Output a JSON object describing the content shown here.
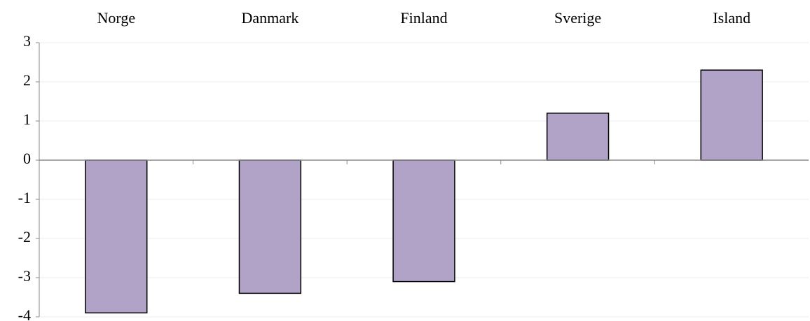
{
  "chart_data": {
    "type": "bar",
    "categories": [
      "Norge",
      "Danmark",
      "Finland",
      "Sverige",
      "Island"
    ],
    "values": [
      -3.9,
      -3.4,
      -3.1,
      1.2,
      2.3
    ],
    "color": "#b1a3c8",
    "ylim": [
      -4,
      3
    ],
    "yticks": [
      -4,
      -3,
      -2,
      -1,
      0,
      1,
      2,
      3
    ],
    "grid": true
  }
}
